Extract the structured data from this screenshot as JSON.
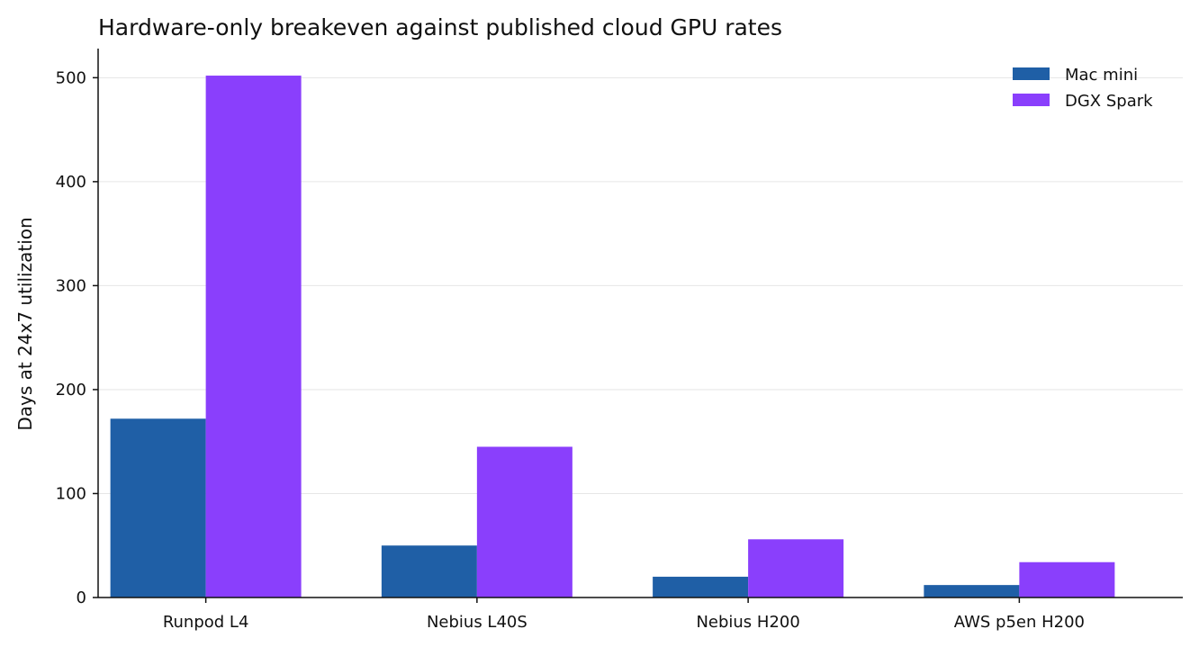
{
  "chart_data": {
    "type": "bar",
    "title": "Hardware-only breakeven against published cloud GPU rates",
    "xlabel": "",
    "ylabel": "Days at 24x7 utilization",
    "categories": [
      "Runpod L4",
      "Nebius L40S",
      "Nebius H200",
      "AWS p5en H200"
    ],
    "series": [
      {
        "name": "Mac mini",
        "color": "#1f5fa6",
        "values": [
          172,
          50,
          20,
          12
        ]
      },
      {
        "name": "DGX Spark",
        "color": "#8a3ffc",
        "values": [
          502,
          145,
          56,
          34
        ]
      }
    ],
    "ylim": [
      0,
      528
    ],
    "yticks": [
      0,
      100,
      200,
      300,
      400,
      500
    ],
    "grid": "horizontal",
    "legend_position": "top-right"
  }
}
